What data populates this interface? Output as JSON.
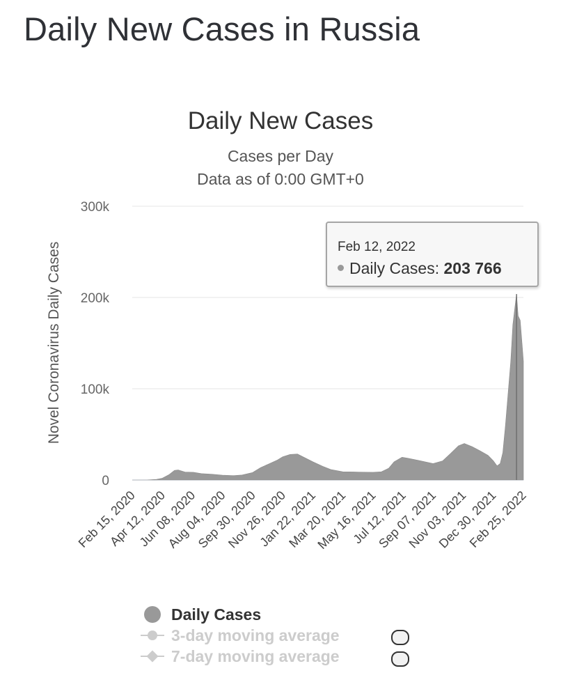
{
  "page_title": "Daily New Cases in Russia",
  "chart_data": {
    "type": "area",
    "title": "Daily New Cases",
    "subtitle": "Cases per Day",
    "subtitle2": "Data as of 0:00 GMT+0",
    "xlabel": "",
    "ylabel": "Novel Coronavirus Daily Cases",
    "ylim": [
      0,
      300000
    ],
    "yticks": [
      0,
      100000,
      200000,
      300000
    ],
    "ytick_labels": [
      "0",
      "100k",
      "200k",
      "300k"
    ],
    "grid": true,
    "legend_position": "bottom",
    "date_start": "2020-02-15",
    "date_end": "2022-02-25",
    "xtick_labels": [
      "Feb 15, 2020",
      "Apr 12, 2020",
      "Jun 08, 2020",
      "Aug 04, 2020",
      "Sep 30, 2020",
      "Nov 26, 2020",
      "Jan 22, 2021",
      "Mar 20, 2021",
      "May 16, 2021",
      "Jul 12, 2021",
      "Sep 07, 2021",
      "Nov 03, 2021",
      "Dec 30, 2021",
      "Feb 25, 2022"
    ],
    "series": [
      {
        "name": "Daily Cases",
        "color": "#999999",
        "points": [
          [
            "2020-02-15",
            0
          ],
          [
            "2020-03-15",
            50
          ],
          [
            "2020-04-01",
            700
          ],
          [
            "2020-04-12",
            2000
          ],
          [
            "2020-04-25",
            6000
          ],
          [
            "2020-05-05",
            10500
          ],
          [
            "2020-05-12",
            11000
          ],
          [
            "2020-05-25",
            8800
          ],
          [
            "2020-06-10",
            8500
          ],
          [
            "2020-06-25",
            7000
          ],
          [
            "2020-07-15",
            6300
          ],
          [
            "2020-08-04",
            5300
          ],
          [
            "2020-08-25",
            4800
          ],
          [
            "2020-09-10",
            5500
          ],
          [
            "2020-09-30",
            8200
          ],
          [
            "2020-10-15",
            13500
          ],
          [
            "2020-10-30",
            17500
          ],
          [
            "2020-11-15",
            21600
          ],
          [
            "2020-11-26",
            25500
          ],
          [
            "2020-12-10",
            28000
          ],
          [
            "2020-12-24",
            28500
          ],
          [
            "2021-01-05",
            25000
          ],
          [
            "2021-01-22",
            20000
          ],
          [
            "2021-02-10",
            15000
          ],
          [
            "2021-02-25",
            11500
          ],
          [
            "2021-03-20",
            9000
          ],
          [
            "2021-04-15",
            8800
          ],
          [
            "2021-05-16",
            8500
          ],
          [
            "2021-06-01",
            9000
          ],
          [
            "2021-06-15",
            13000
          ],
          [
            "2021-06-25",
            20000
          ],
          [
            "2021-07-10",
            25000
          ],
          [
            "2021-07-20",
            24000
          ],
          [
            "2021-08-10",
            21500
          ],
          [
            "2021-09-07",
            18000
          ],
          [
            "2021-09-25",
            21000
          ],
          [
            "2021-10-10",
            29000
          ],
          [
            "2021-10-25",
            37500
          ],
          [
            "2021-11-05",
            40000
          ],
          [
            "2021-11-20",
            36500
          ],
          [
            "2021-12-05",
            32000
          ],
          [
            "2021-12-20",
            27000
          ],
          [
            "2021-12-30",
            21000
          ],
          [
            "2022-01-06",
            15500
          ],
          [
            "2022-01-12",
            18000
          ],
          [
            "2022-01-17",
            30000
          ],
          [
            "2022-01-22",
            60000
          ],
          [
            "2022-01-27",
            95000
          ],
          [
            "2022-02-01",
            130000
          ],
          [
            "2022-02-05",
            170000
          ],
          [
            "2022-02-08",
            185000
          ],
          [
            "2022-02-12",
            203766
          ],
          [
            "2022-02-15",
            180000
          ],
          [
            "2022-02-19",
            175000
          ],
          [
            "2022-02-23",
            145000
          ],
          [
            "2022-02-25",
            130000
          ]
        ]
      },
      {
        "name": "3-day moving average",
        "visible": false
      },
      {
        "name": "7-day moving average",
        "visible": false
      }
    ],
    "tooltip": {
      "date": "Feb 12, 2022",
      "label": "Daily Cases:",
      "value_text": "203 766",
      "value": 203766
    }
  }
}
